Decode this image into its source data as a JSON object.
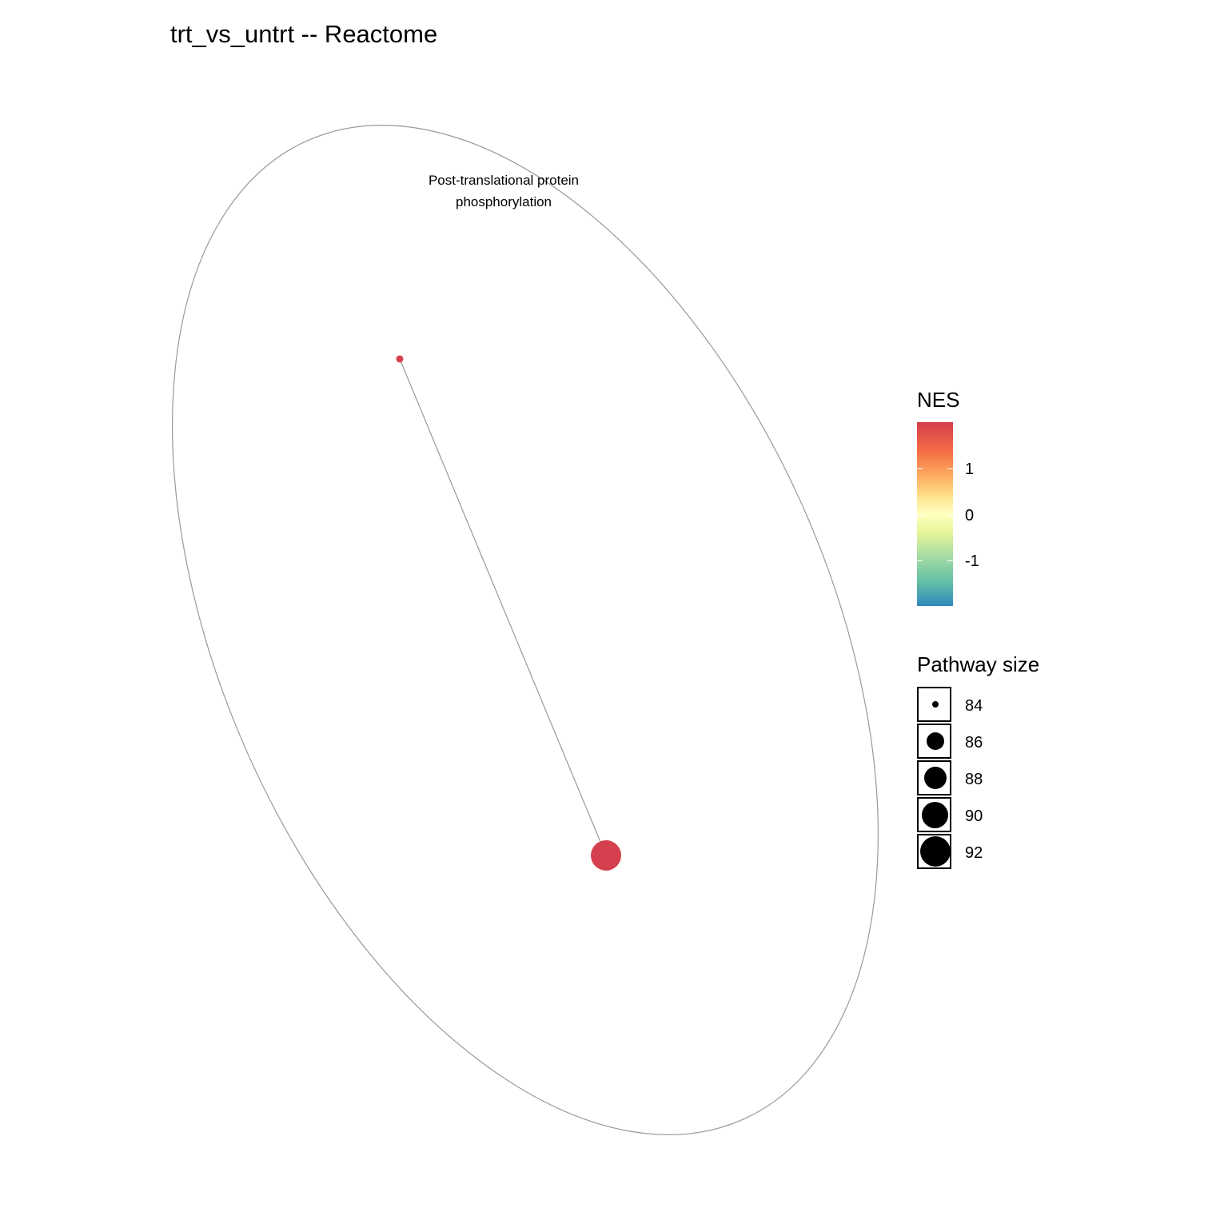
{
  "title": "trt_vs_untrt -- Reactome",
  "cluster": {
    "label_line1": "Post-translational protein",
    "label_line2": "phosphorylation"
  },
  "nodes": [
    {
      "name": "node-small",
      "size": 84,
      "color": "#d6404e"
    },
    {
      "name": "node-large",
      "size": 92,
      "color": "#d6404e"
    }
  ],
  "edge_color": "#999999",
  "ellipse_color": "#999999",
  "legend": {
    "nes": {
      "title": "NES",
      "ticks": [
        "1",
        "0",
        "-1"
      ],
      "colors": [
        "#d53e4f",
        "#f46d43",
        "#fdae61",
        "#fee08b",
        "#ffffbf",
        "#e6f598",
        "#abdda4",
        "#66c2a5",
        "#3288bd"
      ]
    },
    "size": {
      "title": "Pathway size",
      "entries": [
        "84",
        "86",
        "88",
        "90",
        "92"
      ]
    }
  }
}
